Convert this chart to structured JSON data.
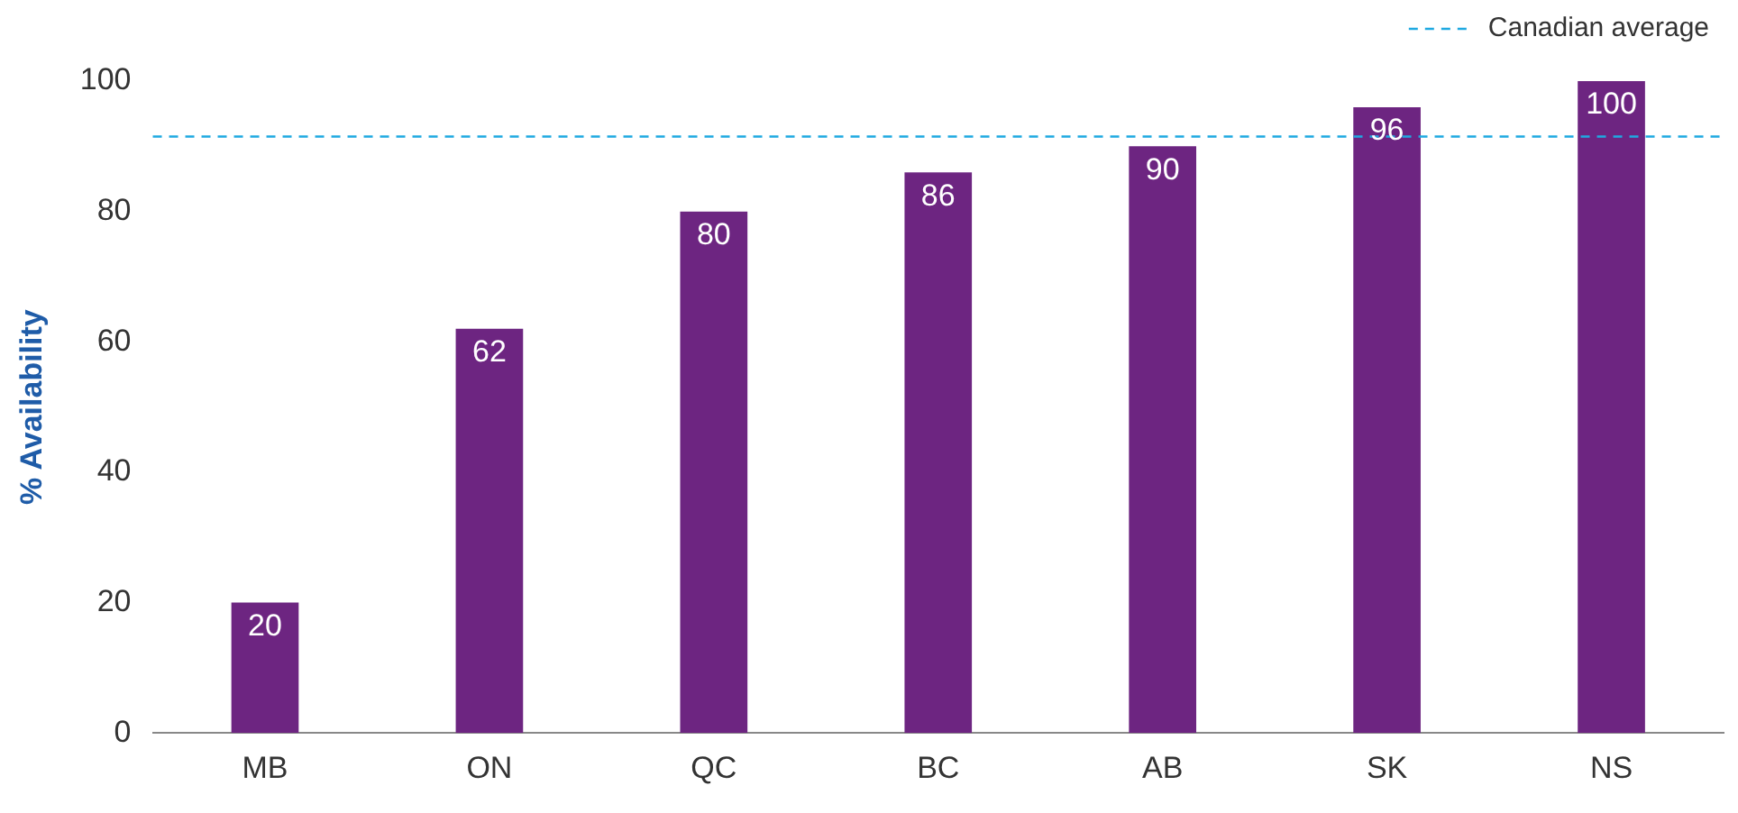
{
  "chart_data": {
    "type": "bar",
    "ylabel": "% Availability",
    "categories": [
      "MB",
      "ON",
      "QC",
      "BC",
      "AB",
      "SK",
      "NS"
    ],
    "values": [
      20,
      62,
      80,
      86,
      90,
      96,
      100
    ],
    "color": "#6d2581",
    "ylim": [
      0,
      100
    ],
    "yticks": [
      0,
      20,
      40,
      60,
      80,
      100
    ],
    "grid": false,
    "data_labels": true,
    "ref_lines": [
      {
        "axis": "y",
        "value": 91.5,
        "label": "Canadian average",
        "color": "#1fa9e1",
        "line_style": "dashed"
      }
    ]
  }
}
